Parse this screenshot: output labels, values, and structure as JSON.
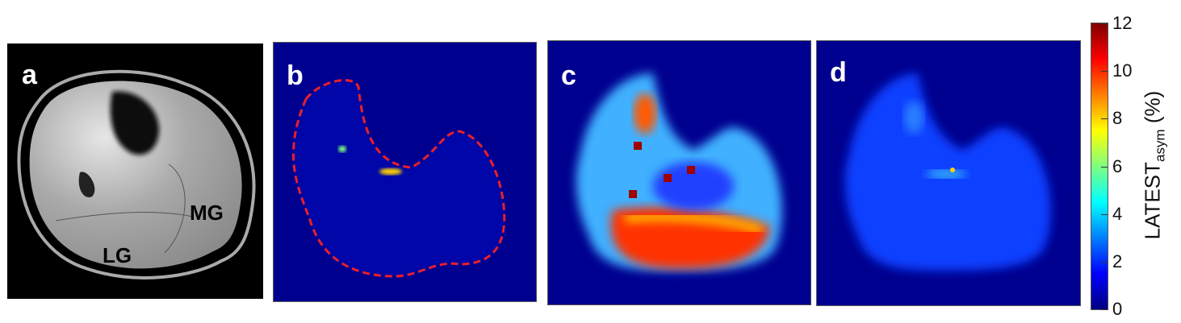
{
  "panels": [
    {
      "label": "a",
      "annotations": [
        "MG",
        "LG"
      ]
    },
    {
      "label": "b"
    },
    {
      "label": "c"
    },
    {
      "label": "d"
    }
  ],
  "colorbar": {
    "title_main": "LATEST",
    "title_sub": "asym",
    "title_unit": "(%)",
    "ticks": [
      "0",
      "2",
      "4",
      "6",
      "8",
      "10",
      "12"
    ],
    "range": [
      0,
      12
    ],
    "colormap": "jet"
  },
  "colors": {
    "roi_outline": "#e8202a",
    "background_map": "#00008f"
  }
}
